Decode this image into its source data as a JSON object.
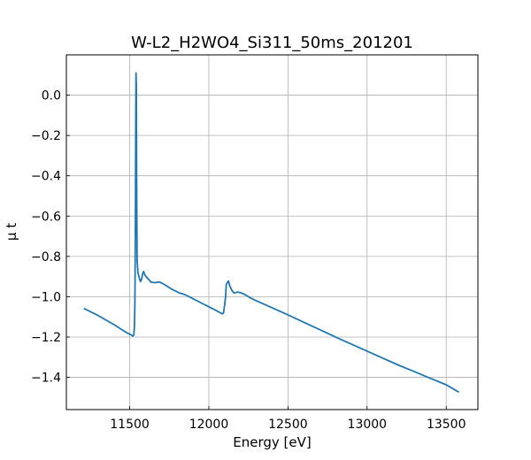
{
  "chart_data": {
    "type": "line",
    "title": "W-L2_H2WO4_Si311_50ms_201201",
    "xlabel": "Energy [eV]",
    "ylabel": "μ t",
    "xlim": [
      11100,
      13700
    ],
    "ylim": [
      -1.56,
      0.2
    ],
    "grid": true,
    "x_ticks": [
      11500,
      12000,
      12500,
      13000,
      13500
    ],
    "y_ticks": [
      0.0,
      -0.2,
      -0.4,
      -0.6,
      -0.8,
      -1.0,
      -1.2,
      -1.4
    ],
    "x_tick_labels": [
      "11500",
      "12000",
      "12500",
      "13000",
      "13500"
    ],
    "y_tick_labels": [
      "0.0",
      "−0.2",
      "−0.4",
      "−0.6",
      "−0.8",
      "−1.0",
      "−1.2",
      "−1.4"
    ],
    "series": [
      {
        "color": "#1f77b4",
        "points": [
          [
            11210,
            -1.058
          ],
          [
            11300,
            -1.093
          ],
          [
            11400,
            -1.138
          ],
          [
            11480,
            -1.178
          ],
          [
            11510,
            -1.19
          ],
          [
            11520,
            -1.195
          ],
          [
            11526,
            -1.19
          ],
          [
            11530,
            -1.15
          ],
          [
            11533,
            -1.03
          ],
          [
            11536,
            -0.65
          ],
          [
            11538,
            -0.2
          ],
          [
            11540,
            0.11
          ],
          [
            11542,
            0.05
          ],
          [
            11544,
            -0.45
          ],
          [
            11547,
            -0.82
          ],
          [
            11552,
            -0.88
          ],
          [
            11560,
            -0.905
          ],
          [
            11568,
            -0.925
          ],
          [
            11575,
            -0.915
          ],
          [
            11582,
            -0.885
          ],
          [
            11588,
            -0.875
          ],
          [
            11598,
            -0.895
          ],
          [
            11615,
            -0.91
          ],
          [
            11635,
            -0.928
          ],
          [
            11660,
            -0.93
          ],
          [
            11690,
            -0.927
          ],
          [
            11720,
            -0.94
          ],
          [
            11760,
            -0.96
          ],
          [
            11810,
            -0.98
          ],
          [
            11850,
            -0.99
          ],
          [
            11900,
            -1.01
          ],
          [
            11950,
            -1.03
          ],
          [
            12000,
            -1.05
          ],
          [
            12050,
            -1.07
          ],
          [
            12085,
            -1.085
          ],
          [
            12093,
            -1.08
          ],
          [
            12100,
            -1.04
          ],
          [
            12106,
            -1.0
          ],
          [
            12110,
            -0.94
          ],
          [
            12117,
            -0.93
          ],
          [
            12124,
            -0.922
          ],
          [
            12132,
            -0.945
          ],
          [
            12145,
            -0.968
          ],
          [
            12160,
            -0.982
          ],
          [
            12180,
            -0.977
          ],
          [
            12200,
            -0.98
          ],
          [
            12230,
            -0.99
          ],
          [
            12260,
            -1.005
          ],
          [
            12300,
            -1.02
          ],
          [
            12400,
            -1.055
          ],
          [
            12500,
            -1.09
          ],
          [
            12600,
            -1.127
          ],
          [
            12700,
            -1.163
          ],
          [
            12800,
            -1.2
          ],
          [
            12900,
            -1.235
          ],
          [
            13000,
            -1.27
          ],
          [
            13100,
            -1.305
          ],
          [
            13200,
            -1.34
          ],
          [
            13300,
            -1.372
          ],
          [
            13400,
            -1.405
          ],
          [
            13500,
            -1.437
          ],
          [
            13580,
            -1.474
          ]
        ]
      }
    ]
  }
}
